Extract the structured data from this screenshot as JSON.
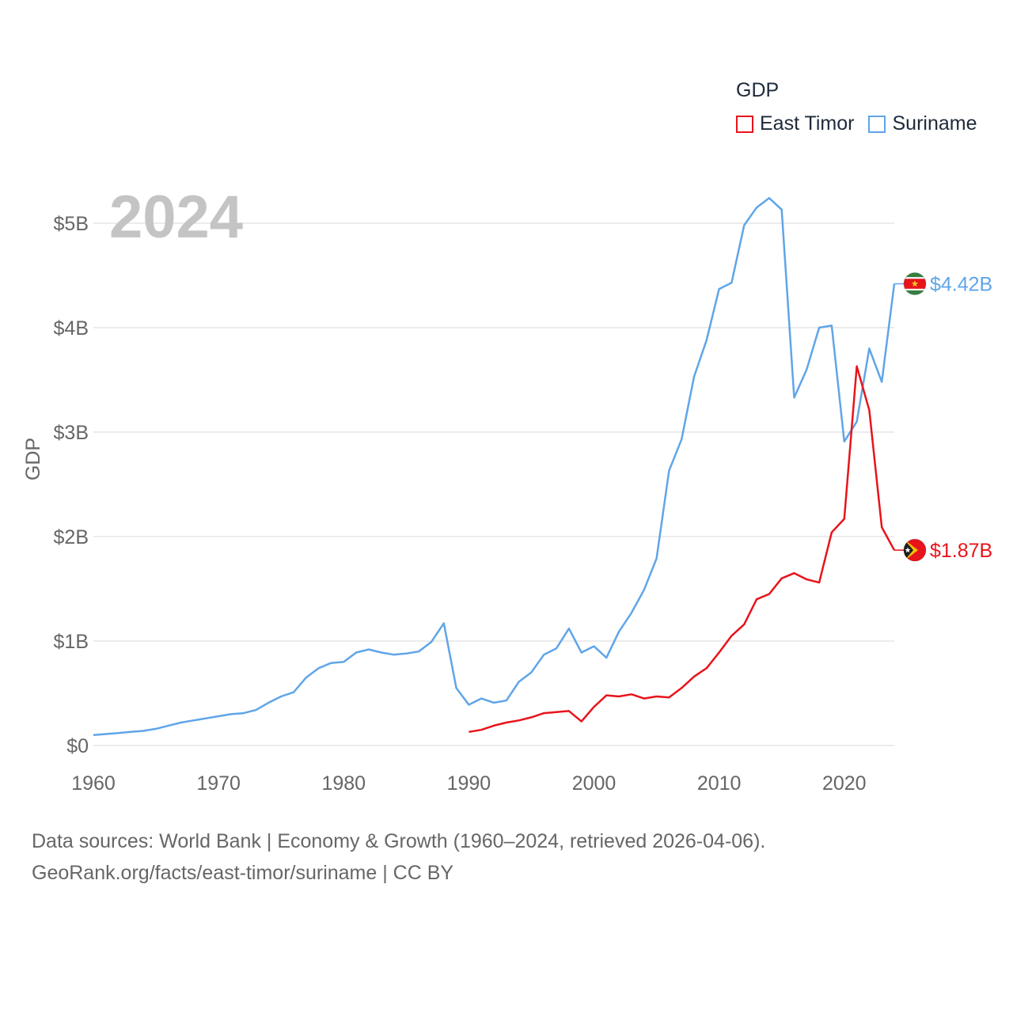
{
  "chart_data": {
    "type": "line",
    "title": "GDP",
    "year_label": "2024",
    "ylabel": "GDP",
    "xlabel": "",
    "xlim": [
      1960,
      2024
    ],
    "ylim": [
      0,
      5.4
    ],
    "x_ticks": [
      1960,
      1970,
      1980,
      1990,
      2000,
      2010,
      2020
    ],
    "x_tick_labels": [
      "1960",
      "1970",
      "1980",
      "1990",
      "2000",
      "2010",
      "2020"
    ],
    "y_ticks": [
      0,
      1,
      2,
      3,
      4,
      5
    ],
    "y_tick_labels": [
      "$0",
      "$1B",
      "$2B",
      "$3B",
      "$4B",
      "$5B"
    ],
    "unit": "billion USD",
    "series": [
      {
        "name": "East Timor",
        "color": "#e8141b",
        "end_label": "$1.87B",
        "end_value": 1.87,
        "flag_icon": "east-timor-flag-icon",
        "x": [
          1990,
          1991,
          1992,
          1993,
          1994,
          1995,
          1996,
          1997,
          1998,
          1999,
          2000,
          2001,
          2002,
          2003,
          2004,
          2005,
          2006,
          2007,
          2008,
          2009,
          2010,
          2011,
          2012,
          2013,
          2014,
          2015,
          2016,
          2017,
          2018,
          2019,
          2020,
          2021,
          2022,
          2023,
          2024
        ],
        "values": [
          0.13,
          0.15,
          0.19,
          0.22,
          0.24,
          0.27,
          0.31,
          0.32,
          0.33,
          0.23,
          0.37,
          0.48,
          0.47,
          0.49,
          0.45,
          0.47,
          0.46,
          0.55,
          0.66,
          0.74,
          0.89,
          1.05,
          1.16,
          1.4,
          1.45,
          1.6,
          1.65,
          1.59,
          1.56,
          2.04,
          2.17,
          3.63,
          3.21,
          2.09,
          1.87
        ]
      },
      {
        "name": "Suriname",
        "color": "#60a5e8",
        "end_label": "$4.42B",
        "end_value": 4.42,
        "flag_icon": "suriname-flag-icon",
        "x": [
          1960,
          1961,
          1962,
          1963,
          1964,
          1965,
          1966,
          1967,
          1968,
          1969,
          1970,
          1971,
          1972,
          1973,
          1974,
          1975,
          1976,
          1977,
          1978,
          1979,
          1980,
          1981,
          1982,
          1983,
          1984,
          1985,
          1986,
          1987,
          1988,
          1989,
          1990,
          1991,
          1992,
          1993,
          1994,
          1995,
          1996,
          1997,
          1998,
          1999,
          2000,
          2001,
          2002,
          2003,
          2004,
          2005,
          2006,
          2007,
          2008,
          2009,
          2010,
          2011,
          2012,
          2013,
          2014,
          2015,
          2016,
          2017,
          2018,
          2019,
          2020,
          2021,
          2022,
          2023,
          2024
        ],
        "values": [
          0.1,
          0.11,
          0.12,
          0.13,
          0.14,
          0.16,
          0.19,
          0.22,
          0.24,
          0.26,
          0.28,
          0.3,
          0.31,
          0.34,
          0.41,
          0.47,
          0.51,
          0.65,
          0.74,
          0.79,
          0.8,
          0.89,
          0.92,
          0.89,
          0.87,
          0.88,
          0.9,
          0.99,
          1.17,
          0.55,
          0.39,
          0.45,
          0.41,
          0.43,
          0.61,
          0.7,
          0.87,
          0.93,
          1.12,
          0.89,
          0.95,
          0.84,
          1.09,
          1.27,
          1.49,
          1.79,
          2.63,
          2.93,
          3.53,
          3.88,
          4.37,
          4.43,
          4.98,
          5.15,
          5.24,
          5.13,
          3.33,
          3.6,
          4.0,
          4.02,
          2.91,
          3.1,
          3.8,
          3.48,
          4.42
        ]
      }
    ]
  },
  "legend": {
    "title": "GDP",
    "items": [
      "East Timor",
      "Suriname"
    ]
  },
  "footer": {
    "line1": "Data sources: World Bank | Economy & Growth (1960–2024, retrieved 2026-04-06).",
    "line2": "GeoRank.org/facts/east-timor/suriname | CC BY"
  }
}
